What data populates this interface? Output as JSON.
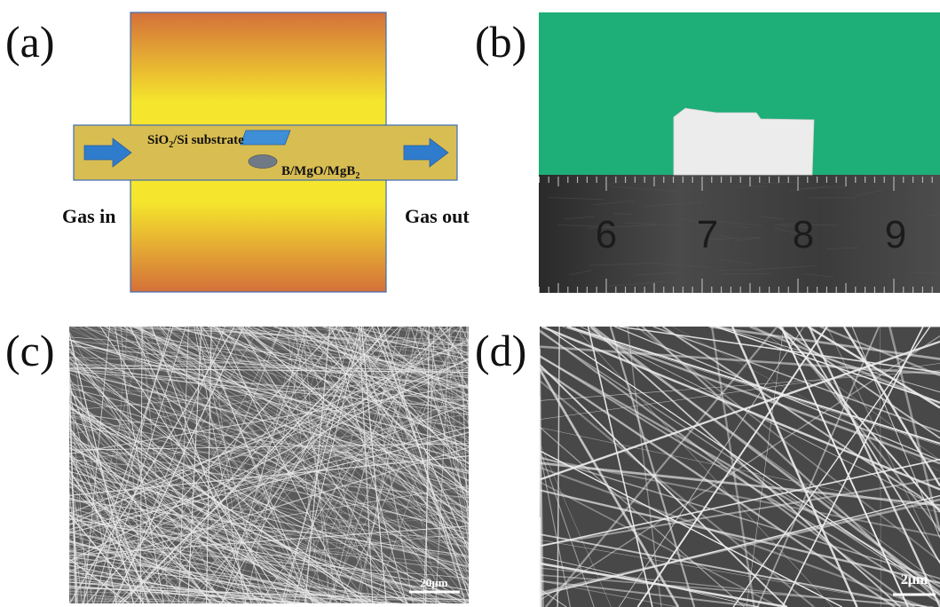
{
  "panels": {
    "a": {
      "label": "(a)",
      "substrate_main": "SiO",
      "substrate_sub": "2",
      "substrate_rest": "/Si substrate",
      "source_main": "B/MgO/MgB",
      "source_sub": "2",
      "gas_in": "Gas in",
      "gas_out": "Gas out",
      "colors": {
        "furnace_hot": "#f5e52c",
        "furnace_edge": "#d4703a",
        "tube": "#d8bd52",
        "arrow": "#2f7ccd",
        "substrate": "#3e8fd8",
        "source": "#707a86"
      }
    },
    "b": {
      "label": "(b)",
      "ruler_numbers": [
        "6",
        "7",
        "8",
        "9"
      ],
      "colors": {
        "background": "#1eae78",
        "ruler": "#383838",
        "sample": "#ececec"
      }
    },
    "c": {
      "label": "(c)",
      "scale_bar": "20μm"
    },
    "d": {
      "label": "(d)",
      "scale_bar": "2μm"
    }
  }
}
